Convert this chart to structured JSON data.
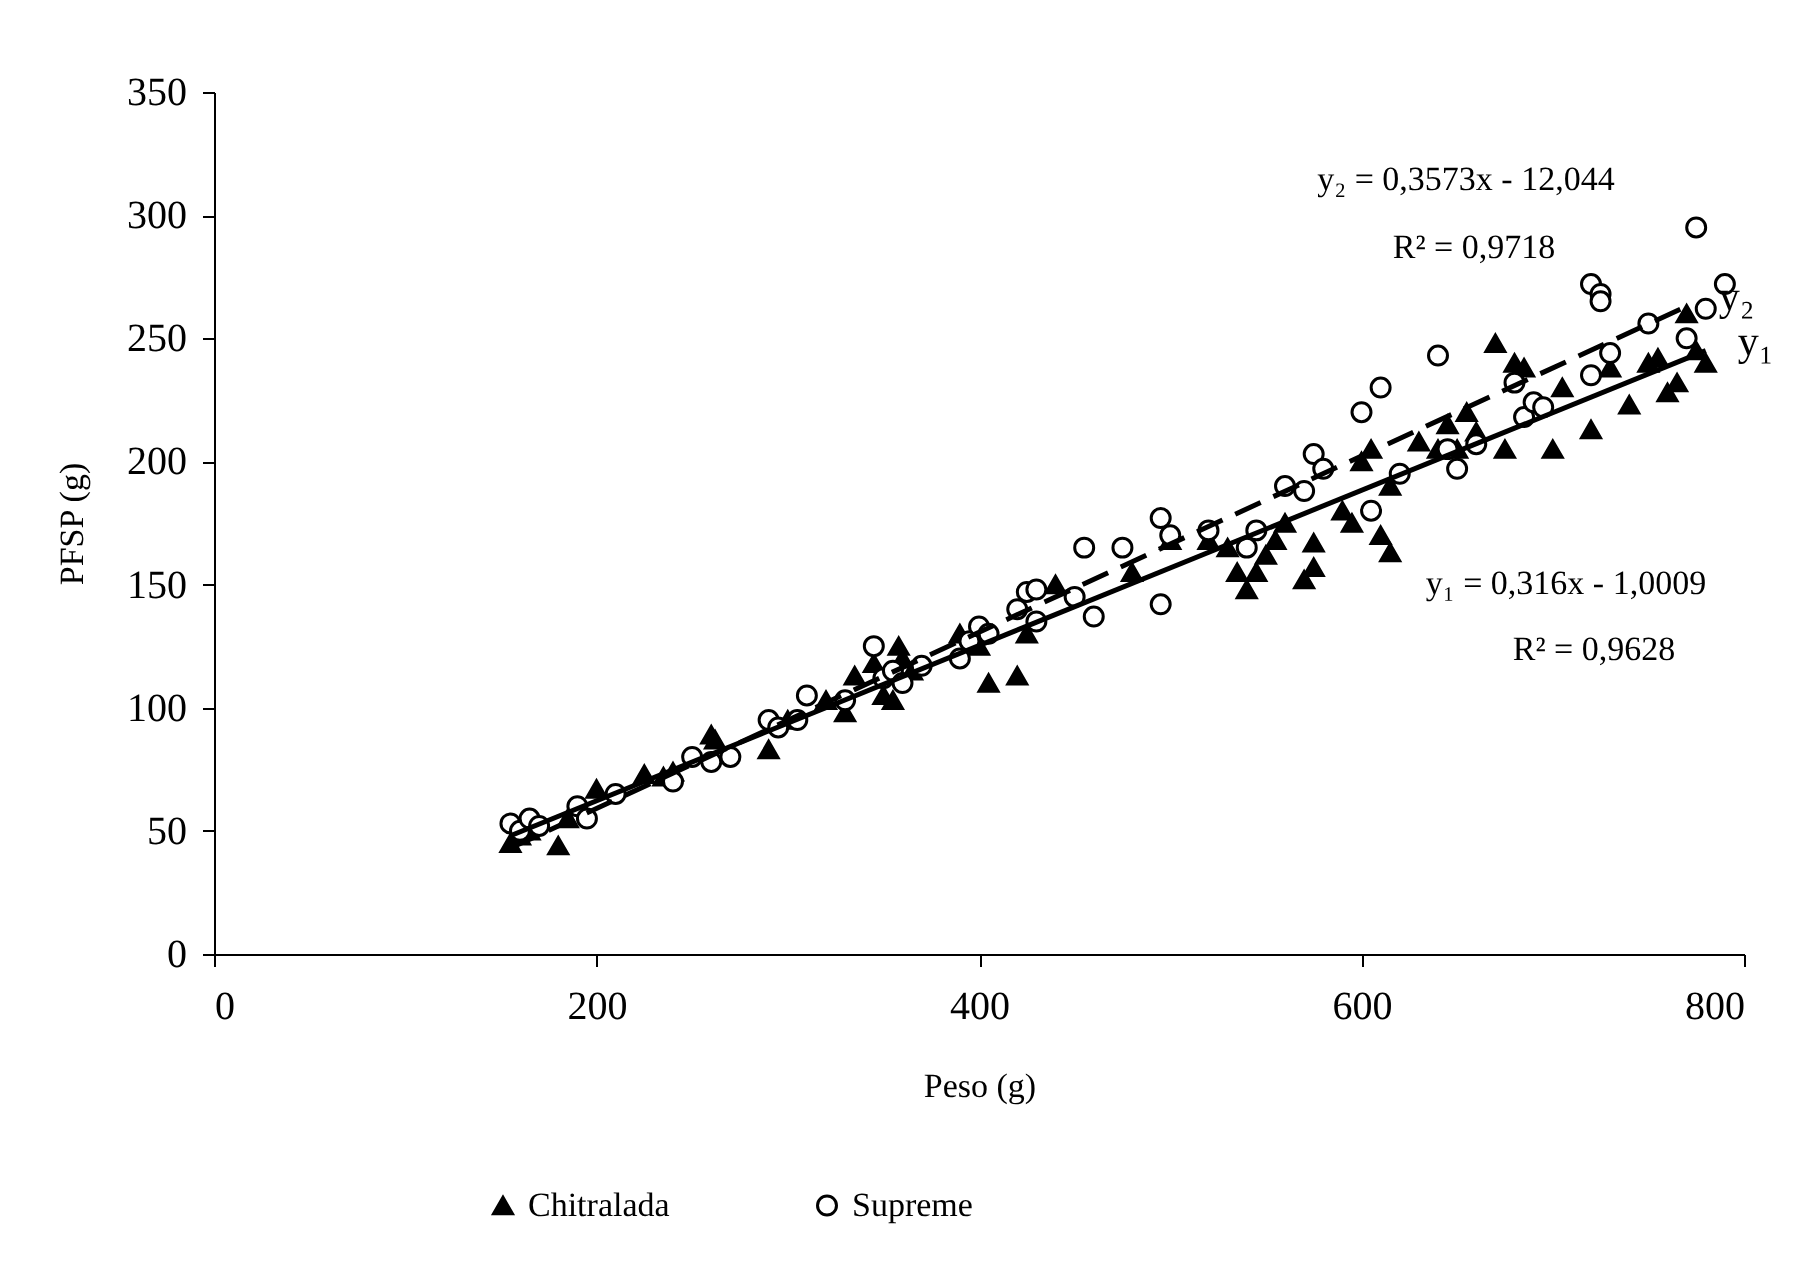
{
  "chart_data": {
    "type": "scatter",
    "xlabel": "Peso (g)",
    "ylabel": "PFSP (g)",
    "xlim": [
      0,
      800
    ],
    "xticks": [
      0,
      200,
      400,
      600,
      800
    ],
    "ylim": [
      0,
      350
    ],
    "yticks": [
      0,
      50,
      100,
      150,
      200,
      250,
      300,
      350
    ],
    "grid": false,
    "legend": "bottom",
    "series": [
      {
        "name": "Chitralada",
        "color": "#000000",
        "marker": "triangle",
        "x": [
          155,
          160,
          165,
          180,
          185,
          200,
          225,
          235,
          240,
          260,
          262,
          290,
          300,
          320,
          330,
          335,
          345,
          350,
          355,
          358,
          360,
          365,
          390,
          400,
          405,
          420,
          425,
          440,
          480,
          500,
          520,
          530,
          535,
          540,
          545,
          550,
          555,
          560,
          570,
          575,
          575,
          590,
          595,
          600,
          605,
          610,
          615,
          615,
          630,
          640,
          645,
          650,
          655,
          660,
          670,
          675,
          680,
          685,
          700,
          705,
          720,
          730,
          740,
          750,
          755,
          760,
          765,
          770,
          775,
          780
        ],
        "values": [
          45,
          48,
          50,
          44,
          55,
          67,
          73,
          72,
          74,
          89,
          87,
          83,
          95,
          103,
          98,
          113,
          118,
          105,
          103,
          125,
          120,
          115,
          130,
          125,
          110,
          113,
          130,
          150,
          155,
          168,
          168,
          165,
          155,
          148,
          155,
          162,
          168,
          175,
          152,
          157,
          167,
          180,
          175,
          200,
          205,
          170,
          163,
          190,
          208,
          205,
          215,
          205,
          220,
          212,
          248,
          205,
          240,
          238,
          205,
          230,
          213,
          238,
          223,
          240,
          242,
          228,
          232,
          260,
          245,
          240
        ]
      },
      {
        "name": "Supreme",
        "color": "#000000",
        "marker": "circle",
        "x": [
          155,
          160,
          165,
          170,
          190,
          195,
          210,
          240,
          250,
          260,
          270,
          290,
          295,
          305,
          310,
          330,
          345,
          350,
          355,
          360,
          370,
          390,
          395,
          400,
          405,
          420,
          425,
          430,
          430,
          450,
          455,
          460,
          475,
          495,
          495,
          500,
          520,
          540,
          545,
          560,
          570,
          575,
          580,
          600,
          605,
          610,
          620,
          640,
          645,
          650,
          660,
          680,
          685,
          690,
          695,
          720,
          720,
          725,
          725,
          730,
          750,
          770,
          775,
          780,
          790
        ],
        "values": [
          53,
          50,
          55,
          52,
          60,
          55,
          65,
          70,
          80,
          78,
          80,
          95,
          92,
          95,
          105,
          103,
          125,
          112,
          115,
          110,
          117,
          120,
          127,
          133,
          130,
          140,
          147,
          148,
          135,
          145,
          165,
          137,
          165,
          177,
          142,
          170,
          172,
          165,
          172,
          190,
          188,
          203,
          197,
          220,
          180,
          230,
          195,
          243,
          205,
          197,
          207,
          232,
          218,
          224,
          222,
          235,
          272,
          268,
          265,
          244,
          256,
          250,
          295,
          262,
          272
        ]
      },
      {
        "name": "y₁",
        "type": "line",
        "color": "#000000",
        "line_style": "solid",
        "x": [
          155,
          780
        ],
        "values": [
          48,
          245
        ]
      },
      {
        "name": "y₂",
        "type": "line",
        "color": "#000000",
        "line_style": "dashed",
        "x": [
          155,
          770
        ],
        "values": [
          43,
          263
        ]
      }
    ],
    "annotations": [
      "y₂ = 0,3573x - 12,044",
      "R² = 0,9718",
      "y₁ = 0,316x - 1,0009",
      "R² = 0,9628"
    ]
  }
}
